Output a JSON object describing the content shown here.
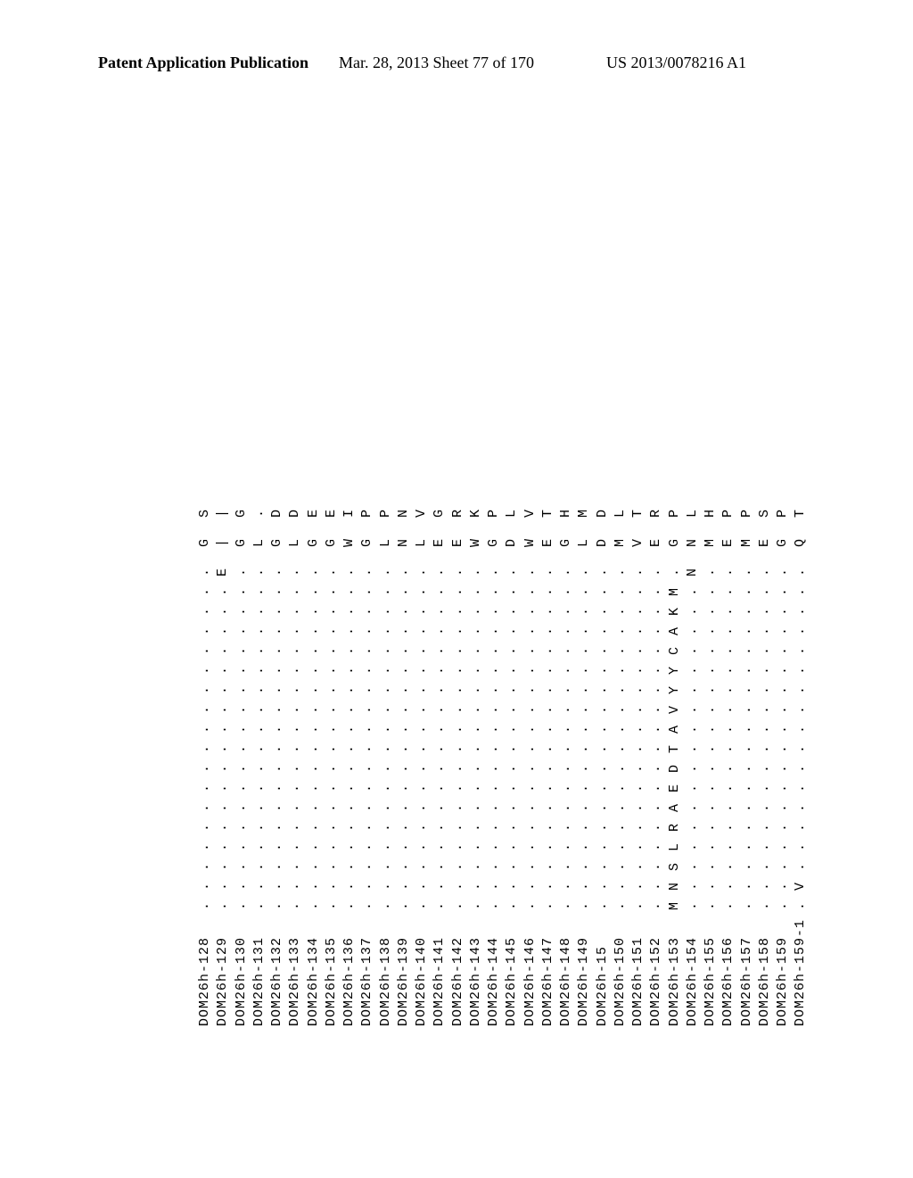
{
  "header": {
    "left": "Patent Application Publication",
    "center": "Mar. 28, 2013  Sheet 77 of 170",
    "right": "US 2013/0078216 A1"
  },
  "alignment": {
    "font_family": "Courier New",
    "font_size_pt": 11,
    "background_color": "#ffffff",
    "text_color": "#000000",
    "rotation_deg": -90,
    "rows": [
      {
        "label": "DOM26h-128",
        "seq": ". . . . . . . . . . . . . . . . . .  G  S"
      },
      {
        "label": "DOM26h-129",
        "seq": ". . . . . . . . . . . . . . . . . E  |  |"
      },
      {
        "label": "DOM26h-130",
        "seq": ". . . . . . . . . . . . . . . . . .  G  G"
      },
      {
        "label": "DOM26h-131",
        "seq": ". . . . . . . . . . . . . . . . . .  L  ."
      },
      {
        "label": "DOM26h-132",
        "seq": ". . . . . . . . . . . . . . . . . .  G  D"
      },
      {
        "label": "DOM26h-133",
        "seq": ". . . . . . . . . . . . . . . . . .  L  D"
      },
      {
        "label": "DOM26h-134",
        "seq": ". . . . . . . . . . . . . . . . . .  G  E"
      },
      {
        "label": "DOM26h-135",
        "seq": ". . . . . . . . . . . . . . . . . .  G  E"
      },
      {
        "label": "DOM26h-136",
        "seq": ". . . . . . . . . . . . . . . . . .  W  I"
      },
      {
        "label": "DOM26h-137",
        "seq": ". . . . . . . . . . . . . . . . . .  G  P"
      },
      {
        "label": "DOM26h-138",
        "seq": ". . . . . . . . . . . . . . . . . .  L  P"
      },
      {
        "label": "DOM26h-139",
        "seq": ". . . . . . . . . . . . . . . . . .  N  N"
      },
      {
        "label": "DOM26h-140",
        "seq": ". . . . . . . . . . . . . . . . . .  L  V"
      },
      {
        "label": "DOM26h-141",
        "seq": ". . . . . . . . . . . . . . . . . .  E  G"
      },
      {
        "label": "DOM26h-142",
        "seq": ". . . . . . . . . . . . . . . . . .  E  R"
      },
      {
        "label": "DOM26h-143",
        "seq": ". . . . . . . . . . . . . . . . . .  W  K"
      },
      {
        "label": "DOM26h-144",
        "seq": ". . . . . . . . . . . . . . . . . .  G  P"
      },
      {
        "label": "DOM26h-145",
        "seq": ". . . . . . . . . . . . . . . . . .  D  L"
      },
      {
        "label": "DOM26h-146",
        "seq": ". . . . . . . . . . . . . . . . . .  W  V"
      },
      {
        "label": "DOM26h-147",
        "seq": ". . . . . . . . . . . . . . . . . .  E  T"
      },
      {
        "label": "DOM26h-148",
        "seq": ". . . . . . . . . . . . . . . . . .  G  H"
      },
      {
        "label": "DOM26h-149",
        "seq": ". . . . . . . . . . . . . . . . . .  L  M"
      },
      {
        "label": "DOM26h-15",
        "seq": ". . . . . . . . . . . . . . . . . .  D  D"
      },
      {
        "label": "DOM26h-150",
        "seq": ". . . . . . . . . . . . . . . . . .  M  L"
      },
      {
        "label": "DOM26h-151",
        "seq": ". . . . . . . . . . . . . . . . . .  V  T"
      },
      {
        "label": "DOM26h-152",
        "seq": ". . . . . . . . . . . . . . . . . .  E  R"
      },
      {
        "label": "DOM26h-153",
        "seq": "M N S L R A E D T A V Y Y C A K M .  G  P"
      },
      {
        "label": "DOM26h-154",
        "seq": ". . . . . . . . . . . . . . . . . N  N  L"
      },
      {
        "label": "DOM26h-155",
        "seq": ". . . . . . . . . . . . . . . . . .  M  H"
      },
      {
        "label": "DOM26h-156",
        "seq": ". . . . . . . . . . . . . . . . . .  E  P"
      },
      {
        "label": "DOM26h-157",
        "seq": ". . . . . . . . . . . . . . . . . .  M  P"
      },
      {
        "label": "DOM26h-158",
        "seq": ". . . . . . . . . . . . . . . . . .  E  S"
      },
      {
        "label": "DOM26h-159",
        "seq": ". . . . . . . . . . . . . . . . . .  G  P"
      },
      {
        "label": "DOM26h-159-1",
        "seq": ". V . . . . . . . . . . . . . . . .  Q  T"
      }
    ]
  }
}
